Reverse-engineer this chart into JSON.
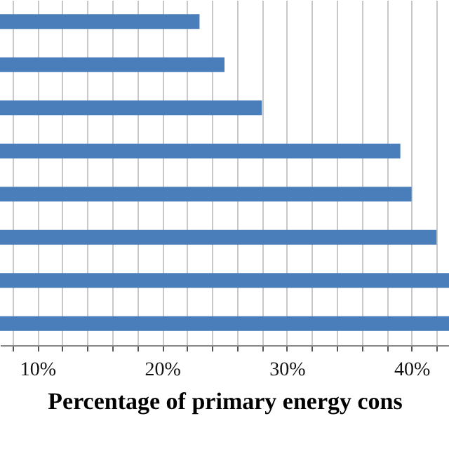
{
  "chart_data": {
    "type": "bar",
    "orientation": "horizontal",
    "xlabel": "Percentage of primary energy cons",
    "categories": [
      null,
      null,
      null,
      null,
      null,
      null,
      null,
      null
    ],
    "values": [
      23,
      25,
      28,
      39.1,
      40,
      42,
      43,
      43
    ],
    "color": "#4a7ebb",
    "xlim": [
      7,
      43
    ],
    "xticks": [
      {
        "value": 8,
        "label": null
      },
      {
        "value": 10,
        "label": "10%"
      },
      {
        "value": 12,
        "label": null
      },
      {
        "value": 14,
        "label": null
      },
      {
        "value": 16,
        "label": null
      },
      {
        "value": 18,
        "label": null
      },
      {
        "value": 20,
        "label": "20%"
      },
      {
        "value": 22,
        "label": null
      },
      {
        "value": 24,
        "label": null
      },
      {
        "value": 26,
        "label": null
      },
      {
        "value": 28,
        "label": null
      },
      {
        "value": 30,
        "label": "30%"
      },
      {
        "value": 32,
        "label": null
      },
      {
        "value": 34,
        "label": null
      },
      {
        "value": 36,
        "label": null
      },
      {
        "value": 38,
        "label": null
      },
      {
        "value": 40,
        "label": "40%"
      },
      {
        "value": 42,
        "label": null
      }
    ],
    "grid": true,
    "tick_labels": "x"
  }
}
